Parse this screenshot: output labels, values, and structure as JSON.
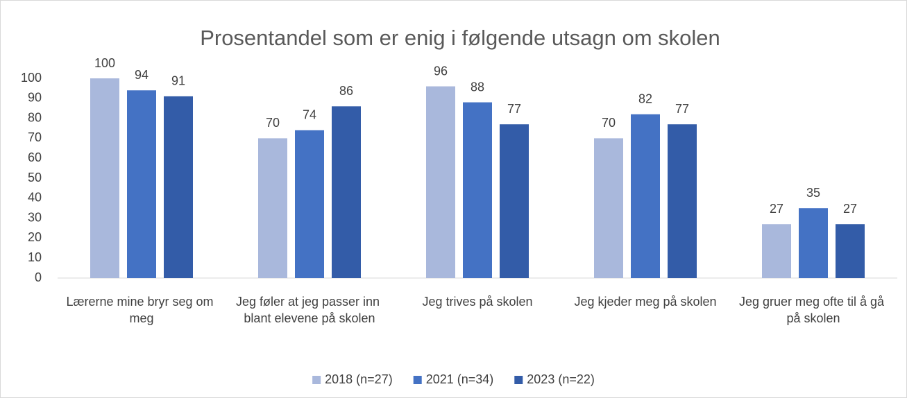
{
  "chart_data": {
    "type": "bar",
    "title": "Prosentandel som er enig i følgende utsagn om skolen",
    "categories": [
      "Lærerne mine bryr seg om meg",
      "Jeg føler at jeg passer inn blant elevene på skolen",
      "Jeg trives på skolen",
      "Jeg kjeder meg på skolen",
      "Jeg gruer meg ofte til å gå på skolen"
    ],
    "series": [
      {
        "name": "2018 (n=27)",
        "color": "#a9b8dc",
        "values": [
          100,
          70,
          96,
          70,
          27
        ]
      },
      {
        "name": "2021 (n=34)",
        "color": "#4472c4",
        "values": [
          94,
          74,
          88,
          82,
          35
        ]
      },
      {
        "name": "2023 (n=22)",
        "color": "#335ca8",
        "values": [
          91,
          86,
          77,
          77,
          27
        ]
      }
    ],
    "ylim": [
      0,
      100
    ],
    "yticks": [
      0,
      10,
      20,
      30,
      40,
      50,
      60,
      70,
      80,
      90,
      100
    ],
    "grid": false,
    "legend": "bottom"
  }
}
